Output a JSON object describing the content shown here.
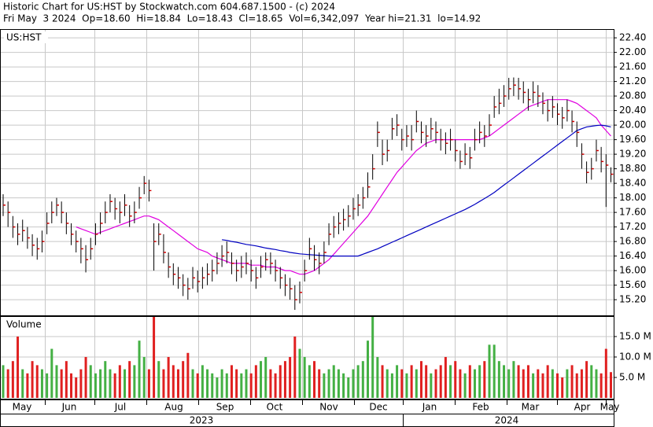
{
  "chart_data": {
    "type": "ohlc",
    "header": [
      "Historic Chart for US:HST by Stockwatch.com 604.687.1500 - (c) 2024",
      "Fri May  3 2024  Op=18.60  Hi=18.84  Lo=18.43  Cl=18.65  Vol=6,342,097  Year hi=21.31  lo=14.92"
    ],
    "symbol": "US:HST",
    "volume_title": "Volume",
    "months": [
      "May",
      "Jun",
      "Jul",
      "Aug",
      "Sep",
      "Oct",
      "Nov",
      "Dec",
      "Jan",
      "Feb",
      "Mar",
      "Apr",
      "May"
    ],
    "years": [
      "2023",
      "2024"
    ],
    "bar_color": "#000000",
    "close_color": "#d00000",
    "up_color": "#44b044",
    "down_color": "#e02020",
    "grid": true,
    "ylim": [
      14.77,
      22.64
    ],
    "yticks": [
      {
        "value": 15.2,
        "label": "15.20"
      },
      {
        "value": 15.6,
        "label": "15.60"
      },
      {
        "value": 16.0,
        "label": "16.00"
      },
      {
        "value": 16.4,
        "label": "16.40"
      },
      {
        "value": 16.8,
        "label": "16.80"
      },
      {
        "value": 17.2,
        "label": "17.20"
      },
      {
        "value": 17.6,
        "label": "17.60"
      },
      {
        "value": 18.0,
        "label": "18.00"
      },
      {
        "value": 18.4,
        "label": "18.40"
      },
      {
        "value": 18.8,
        "label": "18.80"
      },
      {
        "value": 19.2,
        "label": "19.20"
      },
      {
        "value": 19.6,
        "label": "19.60"
      },
      {
        "value": 20.0,
        "label": "20.00"
      },
      {
        "value": 20.4,
        "label": "20.40"
      },
      {
        "value": 20.8,
        "label": "20.80"
      },
      {
        "value": 21.2,
        "label": "21.20"
      },
      {
        "value": 21.6,
        "label": "21.60"
      },
      {
        "value": 22.0,
        "label": "22.00"
      },
      {
        "value": 22.4,
        "label": "22.40"
      }
    ],
    "y2lim": [
      0,
      19.8
    ],
    "y2ticks": [
      {
        "value": 5,
        "label": "5.0 M"
      },
      {
        "value": 10,
        "label": "10.0 M"
      },
      {
        "value": 15,
        "label": "15.0 M"
      }
    ],
    "high": [
      18.1,
      17.9,
      17.5,
      17.3,
      17.4,
      17.2,
      17.0,
      16.9,
      17.1,
      17.6,
      17.9,
      18.0,
      17.9,
      17.6,
      17.3,
      17.1,
      16.9,
      16.7,
      16.9,
      17.3,
      17.6,
      17.9,
      18.1,
      18.0,
      17.9,
      18.1,
      17.8,
      17.9,
      18.3,
      18.6,
      18.5,
      17.3,
      17.3,
      17.0,
      16.5,
      16.2,
      16.1,
      15.9,
      15.8,
      16.1,
      16.0,
      16.1,
      16.2,
      16.3,
      16.5,
      16.7,
      16.8,
      16.5,
      16.3,
      16.4,
      16.5,
      16.3,
      16.1,
      16.4,
      16.5,
      16.5,
      16.3,
      16.1,
      15.9,
      15.8,
      15.6,
      15.7,
      16.3,
      16.9,
      16.7,
      16.5,
      16.8,
      17.3,
      17.5,
      17.6,
      17.7,
      17.8,
      18.0,
      18.1,
      18.3,
      18.7,
      19.2,
      20.1,
      19.6,
      19.6,
      20.2,
      20.3,
      19.9,
      20.0,
      20.0,
      20.4,
      20.1,
      20.0,
      20.2,
      20.1,
      19.9,
      19.8,
      19.9,
      19.6,
      19.3,
      19.5,
      19.4,
      19.9,
      20.1,
      20.0,
      20.3,
      20.8,
      21.0,
      21.1,
      21.3,
      21.31,
      21.3,
      21.2,
      21.0,
      21.2,
      21.1,
      20.9,
      20.7,
      20.8,
      20.6,
      20.5,
      20.7,
      20.4,
      20.1,
      19.5,
      19.0,
      19.1,
      19.6,
      19.4,
      19.2,
      18.84
    ],
    "low": [
      17.5,
      17.2,
      16.9,
      16.7,
      16.8,
      16.6,
      16.4,
      16.3,
      16.5,
      17.0,
      17.3,
      17.5,
      17.3,
      17.0,
      16.7,
      16.5,
      16.2,
      15.95,
      16.3,
      16.7,
      17.0,
      17.3,
      17.6,
      17.4,
      17.3,
      17.5,
      17.2,
      17.3,
      17.7,
      18.1,
      17.9,
      16.0,
      16.7,
      16.2,
      15.8,
      15.6,
      15.5,
      15.3,
      15.2,
      15.5,
      15.4,
      15.5,
      15.6,
      15.7,
      15.9,
      16.1,
      16.2,
      15.9,
      15.7,
      15.8,
      15.9,
      15.7,
      15.5,
      15.8,
      16.0,
      15.9,
      15.7,
      15.5,
      15.3,
      15.2,
      14.92,
      15.1,
      15.7,
      16.3,
      16.0,
      15.9,
      16.2,
      16.7,
      16.9,
      17.0,
      17.1,
      17.2,
      17.4,
      17.5,
      17.7,
      18.0,
      18.5,
      19.4,
      18.9,
      19.0,
      19.6,
      19.7,
      19.3,
      19.4,
      19.3,
      19.8,
      19.5,
      19.4,
      19.6,
      19.5,
      19.3,
      19.2,
      19.3,
      19.0,
      18.8,
      18.9,
      18.8,
      19.3,
      19.5,
      19.4,
      19.7,
      20.2,
      20.3,
      20.5,
      20.7,
      20.8,
      20.7,
      20.6,
      20.4,
      20.6,
      20.5,
      20.3,
      20.1,
      20.2,
      20.0,
      19.9,
      20.1,
      19.8,
      19.4,
      18.8,
      18.4,
      18.5,
      19.0,
      18.7,
      17.75,
      18.43
    ],
    "close": [
      17.8,
      17.6,
      17.2,
      17.0,
      17.1,
      16.9,
      16.7,
      16.6,
      16.8,
      17.3,
      17.6,
      17.8,
      17.6,
      17.3,
      17.0,
      16.8,
      16.6,
      16.3,
      16.6,
      17.0,
      17.3,
      17.6,
      17.9,
      17.7,
      17.6,
      17.8,
      17.5,
      17.6,
      18.0,
      18.4,
      18.2,
      16.8,
      17.0,
      16.5,
      16.1,
      15.9,
      15.8,
      15.6,
      15.5,
      15.8,
      15.7,
      15.8,
      15.9,
      16.0,
      16.2,
      16.4,
      16.5,
      16.2,
      16.0,
      16.1,
      16.2,
      16.0,
      15.8,
      16.1,
      16.3,
      16.2,
      16.0,
      15.8,
      15.6,
      15.5,
      15.2,
      15.4,
      16.0,
      16.6,
      16.3,
      16.2,
      16.5,
      17.0,
      17.2,
      17.3,
      17.4,
      17.5,
      17.7,
      17.8,
      18.0,
      18.3,
      18.8,
      19.8,
      19.2,
      19.3,
      19.9,
      20.0,
      19.6,
      19.7,
      19.6,
      20.1,
      19.8,
      19.7,
      19.9,
      19.8,
      19.6,
      19.5,
      19.6,
      19.3,
      19.0,
      19.2,
      19.1,
      19.6,
      19.8,
      19.7,
      20.0,
      20.5,
      20.6,
      20.8,
      21.0,
      21.1,
      21.0,
      20.9,
      20.7,
      20.9,
      20.8,
      20.6,
      20.4,
      20.5,
      20.3,
      20.2,
      20.4,
      20.1,
      19.8,
      19.2,
      18.7,
      18.8,
      19.3,
      19.0,
      18.9,
      18.65
    ],
    "volume": [
      8,
      7,
      9,
      15,
      7,
      6,
      9,
      8,
      7,
      6,
      12,
      8,
      7,
      9,
      6,
      5,
      7,
      10,
      8,
      6,
      7,
      9,
      7,
      6,
      8,
      7,
      9,
      8,
      14,
      10,
      7,
      19.8,
      9,
      7,
      10,
      8,
      7,
      9,
      11,
      7,
      6,
      8,
      7,
      6,
      5,
      7,
      6,
      8,
      7,
      6,
      7,
      6,
      8,
      9,
      10,
      7,
      6,
      8,
      9,
      10,
      15,
      12,
      10,
      8,
      9,
      7,
      6,
      7,
      8,
      7,
      6,
      5,
      7,
      8,
      9,
      14,
      19.8,
      10,
      8,
      7,
      6,
      8,
      7,
      6,
      8,
      7,
      9,
      8,
      6,
      7,
      8,
      10,
      8,
      9,
      7,
      6,
      8,
      7,
      8,
      9,
      13,
      13,
      9,
      8,
      7,
      9,
      8,
      7,
      8,
      6,
      7,
      6,
      8,
      7,
      6,
      5,
      7,
      8,
      6,
      7,
      9,
      8,
      7,
      6,
      12,
      6.3
    ],
    "series": [
      {
        "color": "#e000e0",
        "values": [
          null,
          null,
          null,
          null,
          null,
          null,
          null,
          null,
          null,
          null,
          null,
          null,
          null,
          null,
          null,
          17.2,
          17.15,
          17.1,
          17.05,
          17.0,
          17.05,
          17.1,
          17.15,
          17.2,
          17.25,
          17.3,
          17.35,
          17.4,
          17.45,
          17.5,
          17.5,
          17.45,
          17.4,
          17.3,
          17.2,
          17.1,
          17.0,
          16.9,
          16.8,
          16.7,
          16.6,
          16.55,
          16.5,
          16.4,
          16.35,
          16.3,
          16.25,
          16.2,
          16.2,
          16.2,
          16.2,
          16.15,
          16.15,
          16.15,
          16.1,
          16.1,
          16.1,
          16.05,
          16.0,
          16.0,
          15.95,
          15.9,
          15.9,
          15.95,
          16.0,
          16.1,
          16.2,
          16.3,
          16.45,
          16.6,
          16.75,
          16.9,
          17.05,
          17.2,
          17.35,
          17.5,
          17.7,
          17.9,
          18.1,
          18.3,
          18.5,
          18.7,
          18.85,
          19.0,
          19.15,
          19.3,
          19.4,
          19.5,
          19.55,
          19.6,
          19.6,
          19.6,
          19.6,
          19.6,
          19.6,
          19.6,
          19.6,
          19.6,
          19.6,
          19.65,
          19.7,
          19.8,
          19.9,
          20.0,
          20.1,
          20.2,
          20.3,
          20.4,
          20.5,
          20.55,
          20.6,
          20.65,
          20.7,
          20.7,
          20.7,
          20.7,
          20.7,
          20.65,
          20.6,
          20.5,
          20.4,
          20.3,
          20.2,
          20.0,
          19.85,
          19.7
        ]
      },
      {
        "color": "#0000c0",
        "values": [
          null,
          null,
          null,
          null,
          null,
          null,
          null,
          null,
          null,
          null,
          null,
          null,
          null,
          null,
          null,
          null,
          null,
          null,
          null,
          null,
          null,
          null,
          null,
          null,
          null,
          null,
          null,
          null,
          null,
          null,
          null,
          null,
          null,
          null,
          null,
          null,
          null,
          null,
          null,
          null,
          null,
          null,
          null,
          null,
          null,
          16.85,
          16.83,
          16.8,
          16.78,
          16.75,
          16.72,
          16.7,
          16.68,
          16.65,
          16.62,
          16.6,
          16.58,
          16.55,
          16.53,
          16.5,
          16.48,
          16.46,
          16.45,
          16.44,
          16.43,
          16.42,
          16.41,
          16.4,
          16.4,
          16.4,
          16.4,
          16.4,
          16.4,
          16.4,
          16.45,
          16.5,
          16.55,
          16.6,
          16.66,
          16.72,
          16.78,
          16.84,
          16.9,
          16.96,
          17.02,
          17.08,
          17.14,
          17.2,
          17.26,
          17.32,
          17.38,
          17.44,
          17.5,
          17.56,
          17.62,
          17.68,
          17.75,
          17.82,
          17.9,
          17.98,
          18.06,
          18.15,
          18.25,
          18.35,
          18.45,
          18.55,
          18.65,
          18.75,
          18.85,
          18.95,
          19.05,
          19.15,
          19.25,
          19.35,
          19.45,
          19.55,
          19.65,
          19.75,
          19.85,
          19.9,
          19.95,
          19.97,
          19.99,
          20.0,
          19.98,
          19.95
        ]
      }
    ]
  }
}
